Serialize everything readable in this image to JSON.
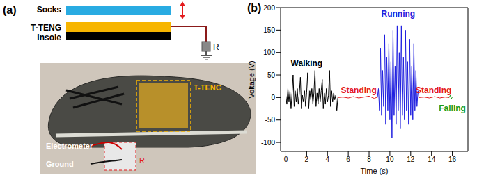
{
  "diagram": {
    "label": "(a)",
    "layers": [
      {
        "text": "Socks",
        "color": "#29abe2"
      },
      {
        "text": "T-TENG",
        "color": "#f7b500"
      },
      {
        "text": "Insole",
        "color": "#000000"
      }
    ],
    "resistor": "R",
    "photo": {
      "device": "T-TENG",
      "electrometer": "Electrometer",
      "ground": "Ground",
      "resistor": "R"
    }
  },
  "chart_data": {
    "label": "(b)",
    "type": "line",
    "xlabel": "Time (s)",
    "ylabel": "Voltage (V)",
    "xlim": [
      -0.5,
      17.5
    ],
    "xticks": [
      0,
      2,
      4,
      6,
      8,
      10,
      12,
      14,
      16
    ],
    "ylim": [
      -120,
      200
    ],
    "yticks": [
      -100,
      -50,
      0,
      50,
      100,
      150,
      200
    ],
    "series": [
      {
        "color": "#000000",
        "x": [
          0,
          0.1,
          0.2,
          0.3,
          0.4,
          0.5,
          0.6,
          0.7,
          0.8,
          0.9,
          1.0,
          1.1,
          1.2,
          1.3,
          1.4,
          1.5,
          1.6,
          1.7,
          1.8,
          1.9,
          2.0,
          2.1,
          2.2,
          2.3,
          2.4,
          2.5,
          2.6,
          2.7,
          2.8,
          2.9,
          3.0,
          3.1,
          3.2,
          3.3,
          3.4,
          3.5,
          3.6,
          3.7,
          3.8,
          3.9,
          4.0,
          4.1,
          4.2,
          4.3,
          4.4,
          4.5,
          4.6,
          4.7,
          4.8,
          4.9,
          5.0
        ],
        "values": [
          5,
          -15,
          20,
          -10,
          15,
          -25,
          10,
          50,
          -20,
          15,
          -10,
          20,
          -15,
          10,
          45,
          -25,
          5,
          -10,
          15,
          -20,
          10,
          55,
          -25,
          15,
          -5,
          20,
          -15,
          10,
          60,
          -20,
          10,
          -15,
          20,
          -10,
          15,
          40,
          -25,
          10,
          -15,
          20,
          -10,
          5,
          60,
          -20,
          15,
          -10,
          10,
          -5,
          5,
          -30,
          0
        ]
      },
      {
        "color": "#e41a1c",
        "x": [
          5.0,
          5.5,
          6.0,
          6.5,
          7.0,
          7.5,
          8.0,
          8.5,
          8.8
        ],
        "values": [
          0,
          1,
          -1,
          2,
          -1,
          1,
          3,
          -2,
          1
        ]
      },
      {
        "color": "#1f1fe0",
        "x": [
          8.8,
          8.9,
          9.0,
          9.1,
          9.2,
          9.3,
          9.4,
          9.5,
          9.6,
          9.7,
          9.8,
          9.9,
          10.0,
          10.1,
          10.2,
          10.3,
          10.4,
          10.5,
          10.6,
          10.7,
          10.8,
          10.9,
          11.0,
          11.1,
          11.2,
          11.3,
          11.4,
          11.5,
          11.6,
          11.7,
          11.8,
          11.9,
          12.0,
          12.1,
          12.2,
          12.3,
          12.4,
          12.5,
          12.6,
          12.7,
          12.8
        ],
        "values": [
          0,
          20,
          -30,
          110,
          -40,
          60,
          -20,
          140,
          -60,
          90,
          -30,
          120,
          -50,
          80,
          -90,
          150,
          -40,
          70,
          -60,
          160,
          -30,
          100,
          -70,
          160,
          -40,
          90,
          -50,
          150,
          -30,
          80,
          -60,
          130,
          -40,
          70,
          -50,
          120,
          -30,
          60,
          -20,
          15,
          0
        ]
      },
      {
        "color": "#e41a1c",
        "x": [
          12.8,
          13.3,
          13.8,
          14.3,
          14.8,
          15.3,
          15.7
        ],
        "values": [
          0,
          1,
          -1,
          2,
          -1,
          1,
          0
        ]
      },
      {
        "color": "#1a9e1a",
        "x": [
          15.7,
          15.8,
          15.9,
          16.0
        ],
        "values": [
          0,
          5,
          -3,
          1
        ]
      }
    ],
    "annotations": [
      {
        "text": "Walking",
        "x": 2,
        "y": 75,
        "color": "#000000"
      },
      {
        "text": "Standing",
        "x": 7,
        "y": 15,
        "color": "#e41a1c"
      },
      {
        "text": "Running",
        "x": 10.8,
        "y": 185,
        "color": "#1f1fe0"
      },
      {
        "text": "Standing",
        "x": 14.2,
        "y": 15,
        "color": "#e41a1c"
      },
      {
        "text": "Falling",
        "x": 16,
        "y": -25,
        "color": "#1a9e1a"
      }
    ]
  }
}
